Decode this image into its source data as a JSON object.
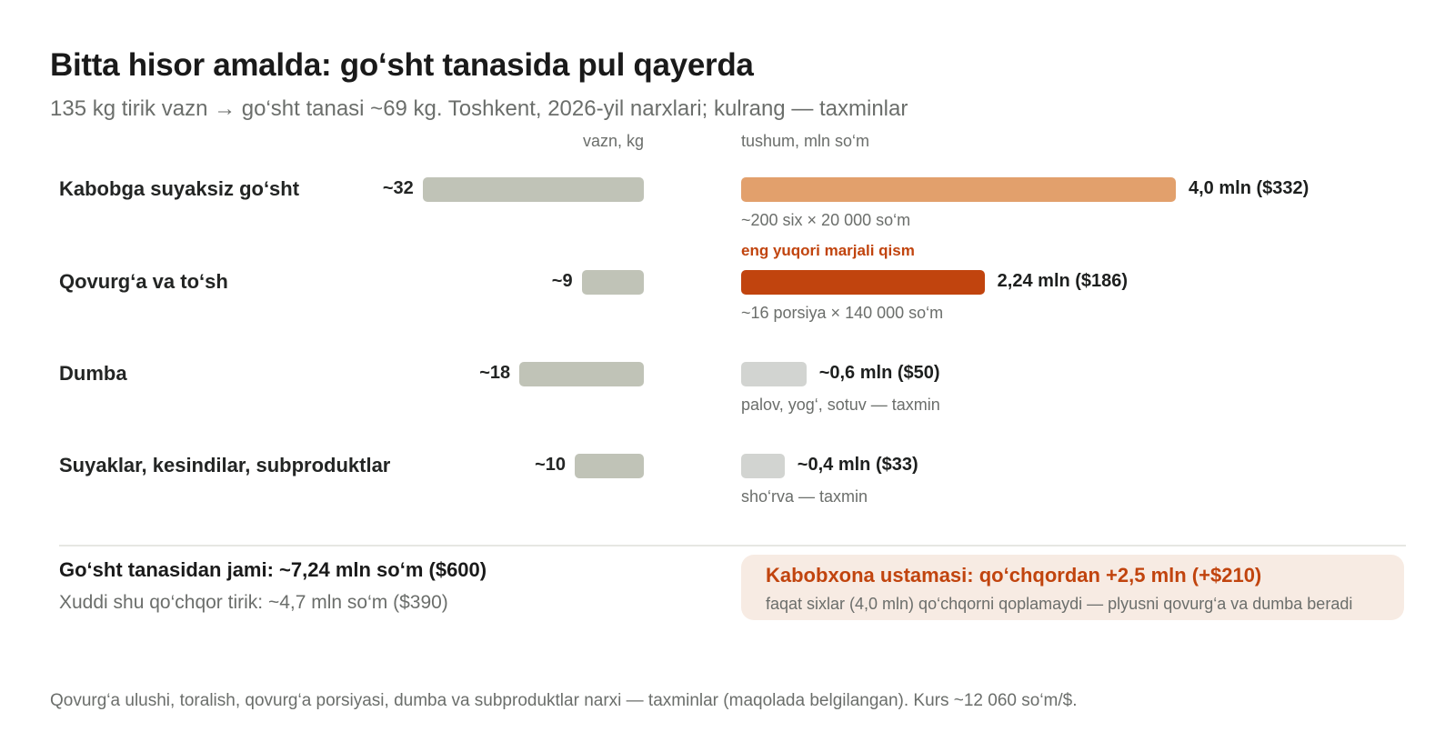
{
  "title": "Bitta hisor amalda: go‘sht tanasida pul qayerda",
  "subtitle": "135 kg tirik vazn → go‘sht tanasi ~69 kg. Toshkent, 2026-yil narxlari; kulrang — taxminlar",
  "chart_data": {
    "type": "bar",
    "orientation": "horizontal",
    "categories": [
      "Kabobga suyaksiz go‘sht",
      "Qovurg‘a va to‘sh",
      "Dumba",
      "Suyaklar, kesindilar, subproduktlar"
    ],
    "weight_axis_label": "vazn, kg",
    "revenue_axis_label": "tushum, mln so‘m",
    "weight_values": [
      32,
      9,
      18,
      10
    ],
    "weight_labels": [
      "~32",
      "~9",
      "~18",
      "~10"
    ],
    "revenue_values": [
      4.0,
      2.24,
      0.6,
      0.4
    ],
    "revenue_labels": [
      "4,0 mln ($332)",
      "2,24 mln ($186)",
      "~0,6 mln ($50)",
      "~0,4 mln ($33)"
    ],
    "revenue_notes": [
      "~200 six × 20 000 so‘m",
      "~16 porsiya × 140 000 so‘m",
      "palov, yog‘, sotuv — taxmin",
      "sho‘rva — taxmin"
    ],
    "revenue_colors": [
      "#e2a06c",
      "#c1440e",
      "#d2d4d1",
      "#d2d4d1"
    ],
    "weight_color": "#c0c3b7",
    "highlight_tag": "eng yuqori marjali qism",
    "highlight_index": 1
  },
  "summary": {
    "total_main": "Go‘sht tanasidan jami: ~7,24 mln so‘m ($600)",
    "total_sub": "Xuddi shu qo‘chqor tirik: ~4,7 mln so‘m ($390)"
  },
  "callout": {
    "title": "Kabobxona ustamasi: qo‘chqordan +2,5 mln (+$210)",
    "text": "faqat sixlar (4,0 mln) qo‘chqorni qoplamaydi — plyusni qovurg‘a va dumba beradi"
  },
  "footnote": "Qovurg‘a ulushi, toralish, qovurg‘a porsiyasi, dumba va subproduktlar narxi — taxminlar (maqolada belgilangan). Kurs ~12 060 so‘m/$.",
  "colors": {
    "accent": "#c1440e",
    "callout_bg": "#f7ebe3"
  }
}
